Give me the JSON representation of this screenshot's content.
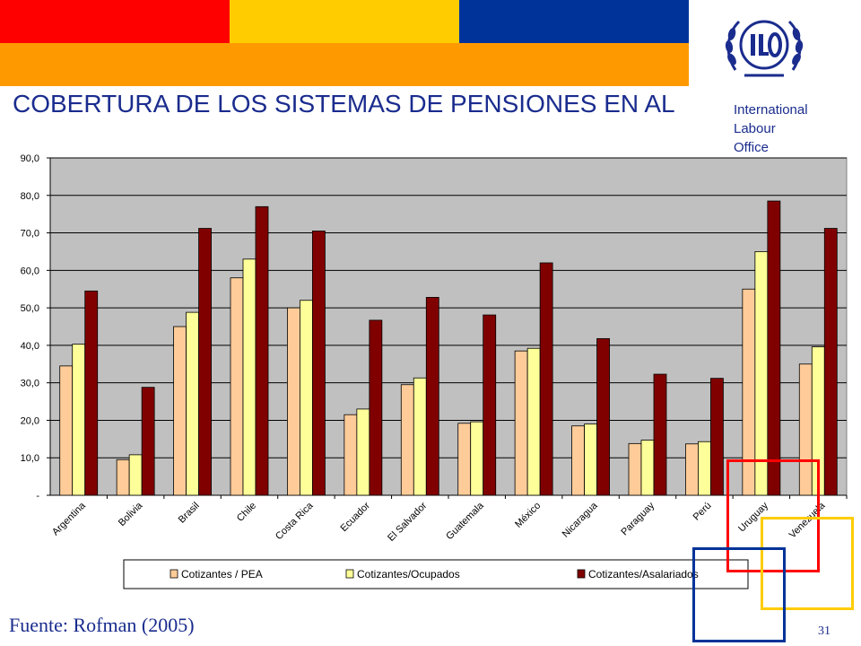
{
  "header": {
    "title": "COBERTURA DE LOS SISTEMAS DE PENSIONES  EN AL",
    "org_lines": [
      "International",
      "Labour",
      "Office"
    ],
    "logo_letters": "ILO",
    "colors": {
      "red": "#ff0000",
      "yellow": "#ffcc00",
      "blue": "#003399",
      "orange": "#ff9900",
      "title": "#1a2c8e"
    }
  },
  "footer": {
    "source": "Fuente: Rofman (2005)",
    "page_number": "31"
  },
  "chart_data": {
    "type": "bar",
    "title": "",
    "xlabel": "",
    "ylabel": "",
    "ylim": [
      0,
      90
    ],
    "yticks": [
      "-",
      "10,0",
      "20,0",
      "30,0",
      "40,0",
      "50,0",
      "60,0",
      "70,0",
      "80,0",
      "90,0"
    ],
    "grid": true,
    "legend_position": "bottom",
    "categories": [
      "Argentina",
      "Bolivia",
      "Brasil",
      "Chile",
      "Costa Rica",
      "Ecuador",
      "El Salvador",
      "Guatemala",
      "México",
      "Nicaragua",
      "Paraguay",
      "Perú",
      "Uruguay",
      "Venezuela"
    ],
    "series": [
      {
        "name": "Cotizantes / PEA",
        "color": "#ffcc99",
        "values": [
          34.5,
          9.5,
          45.0,
          58.0,
          50.0,
          21.5,
          29.5,
          19.2,
          38.5,
          18.5,
          13.8,
          13.7,
          55.0,
          35.0
        ]
      },
      {
        "name": "Cotizantes/Ocupados",
        "color": "#ffff99",
        "values": [
          40.3,
          10.8,
          48.8,
          63.0,
          52.0,
          23.0,
          31.3,
          19.6,
          39.2,
          19.0,
          14.7,
          14.3,
          65.0,
          39.6
        ]
      },
      {
        "name": "Cotizantes/Asalariados",
        "color": "#800000",
        "values": [
          54.5,
          28.8,
          71.2,
          77.0,
          70.5,
          46.7,
          52.8,
          48.1,
          62.0,
          41.8,
          32.3,
          31.2,
          78.5,
          71.2
        ]
      }
    ]
  }
}
